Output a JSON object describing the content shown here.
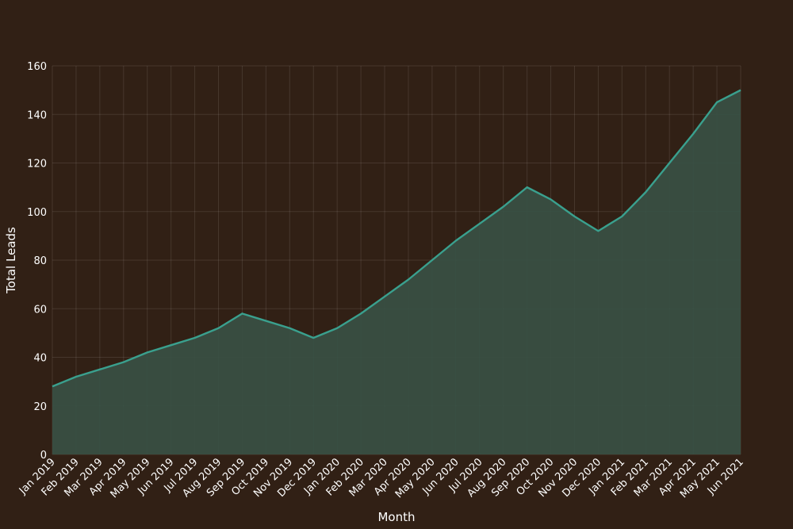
{
  "chart_data": {
    "type": "area",
    "xlabel": "Month",
    "ylabel": "Total Leads",
    "ylim": [
      0,
      160
    ],
    "yticks": [
      0,
      20,
      40,
      60,
      80,
      100,
      120,
      140,
      160
    ],
    "grid": true,
    "categories": [
      "Jan 2019",
      "Feb 2019",
      "Mar 2019",
      "Apr 2019",
      "May 2019",
      "Jun 2019",
      "Jul 2019",
      "Aug 2019",
      "Sep 2019",
      "Oct 2019",
      "Nov 2019",
      "Dec 2019",
      "Jan 2020",
      "Feb 2020",
      "Mar 2020",
      "Apr 2020",
      "May 2020",
      "Jun 2020",
      "Jul 2020",
      "Aug 2020",
      "Sep 2020",
      "Oct 2020",
      "Nov 2020",
      "Dec 2020",
      "Jan 2021",
      "Feb 2021",
      "Mar 2021",
      "Apr 2021",
      "May 2021",
      "Jun 2021"
    ],
    "series": [
      {
        "values": [
          28,
          32,
          35,
          38,
          42,
          45,
          48,
          52,
          58,
          55,
          52,
          48,
          52,
          58,
          65,
          72,
          80,
          88,
          95,
          102,
          110,
          105,
          98,
          92,
          98,
          108,
          120,
          132,
          145,
          150
        ]
      }
    ],
    "colors": {
      "background": "#312015",
      "line": "#3aa08e",
      "fill": "#385044",
      "text": "#ffffff"
    }
  }
}
